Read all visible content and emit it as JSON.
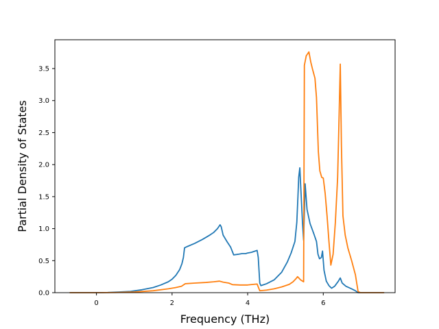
{
  "chart_data": {
    "type": "line",
    "title": "",
    "xlabel": "Frequency (THz)",
    "ylabel": "Partial Density of States",
    "xlim": [
      -1.1,
      7.9
    ],
    "ylim": [
      0.0,
      3.95
    ],
    "grid": false,
    "legend": "none",
    "x_ticks": [
      {
        "value": 0,
        "label": "0"
      },
      {
        "value": 2,
        "label": "2"
      },
      {
        "value": 4,
        "label": "4"
      },
      {
        "value": 6,
        "label": "6"
      }
    ],
    "y_ticks": [
      {
        "value": 0.0,
        "label": "0.0"
      },
      {
        "value": 0.5,
        "label": "0.5"
      },
      {
        "value": 1.0,
        "label": "1.0"
      },
      {
        "value": 1.5,
        "label": "1.5"
      },
      {
        "value": 2.0,
        "label": "2.0"
      },
      {
        "value": 2.5,
        "label": "2.5"
      },
      {
        "value": 3.0,
        "label": "3.0"
      },
      {
        "value": 3.5,
        "label": "3.5"
      }
    ],
    "series": [
      {
        "color": "#1f77b4",
        "points": [
          [
            -0.7,
            0.0
          ],
          [
            0.0,
            0.0
          ],
          [
            0.3,
            0.003
          ],
          [
            0.6,
            0.01
          ],
          [
            0.9,
            0.02
          ],
          [
            1.2,
            0.045
          ],
          [
            1.5,
            0.08
          ],
          [
            1.7,
            0.12
          ],
          [
            1.9,
            0.17
          ],
          [
            2.0,
            0.21
          ],
          [
            2.1,
            0.27
          ],
          [
            2.2,
            0.36
          ],
          [
            2.26,
            0.45
          ],
          [
            2.3,
            0.55
          ],
          [
            2.33,
            0.7
          ],
          [
            2.4,
            0.72
          ],
          [
            2.6,
            0.77
          ],
          [
            2.8,
            0.83
          ],
          [
            3.0,
            0.9
          ],
          [
            3.1,
            0.94
          ],
          [
            3.2,
            1.0
          ],
          [
            3.27,
            1.06
          ],
          [
            3.3,
            1.03
          ],
          [
            3.35,
            0.9
          ],
          [
            3.45,
            0.8
          ],
          [
            3.55,
            0.71
          ],
          [
            3.63,
            0.59
          ],
          [
            3.75,
            0.6
          ],
          [
            3.85,
            0.61
          ],
          [
            3.95,
            0.61
          ],
          [
            4.0,
            0.62
          ],
          [
            4.1,
            0.63
          ],
          [
            4.2,
            0.65
          ],
          [
            4.25,
            0.66
          ],
          [
            4.28,
            0.55
          ],
          [
            4.32,
            0.15
          ],
          [
            4.35,
            0.11
          ],
          [
            4.5,
            0.14
          ],
          [
            4.7,
            0.2
          ],
          [
            4.9,
            0.32
          ],
          [
            5.05,
            0.48
          ],
          [
            5.15,
            0.62
          ],
          [
            5.25,
            0.8
          ],
          [
            5.3,
            1.1
          ],
          [
            5.33,
            1.5
          ],
          [
            5.35,
            1.8
          ],
          [
            5.38,
            1.95
          ],
          [
            5.4,
            1.7
          ],
          [
            5.45,
            1.1
          ],
          [
            5.48,
            0.82
          ],
          [
            5.52,
            1.7
          ],
          [
            5.57,
            1.3
          ],
          [
            5.65,
            1.08
          ],
          [
            5.75,
            0.92
          ],
          [
            5.82,
            0.8
          ],
          [
            5.86,
            0.6
          ],
          [
            5.9,
            0.53
          ],
          [
            5.95,
            0.55
          ],
          [
            5.98,
            0.65
          ],
          [
            6.02,
            0.35
          ],
          [
            6.08,
            0.18
          ],
          [
            6.15,
            0.11
          ],
          [
            6.22,
            0.07
          ],
          [
            6.3,
            0.1
          ],
          [
            6.4,
            0.18
          ],
          [
            6.45,
            0.23
          ],
          [
            6.5,
            0.15
          ],
          [
            6.6,
            0.1
          ],
          [
            6.75,
            0.06
          ],
          [
            6.85,
            0.03
          ],
          [
            6.92,
            0.0
          ],
          [
            7.6,
            0.0
          ]
        ]
      },
      {
        "color": "#ff7f0e",
        "points": [
          [
            -0.7,
            0.0
          ],
          [
            0.0,
            0.0
          ],
          [
            0.5,
            0.003
          ],
          [
            1.0,
            0.01
          ],
          [
            1.5,
            0.03
          ],
          [
            1.9,
            0.06
          ],
          [
            2.1,
            0.08
          ],
          [
            2.25,
            0.1
          ],
          [
            2.35,
            0.14
          ],
          [
            2.6,
            0.15
          ],
          [
            2.9,
            0.16
          ],
          [
            3.1,
            0.17
          ],
          [
            3.25,
            0.18
          ],
          [
            3.35,
            0.165
          ],
          [
            3.5,
            0.15
          ],
          [
            3.6,
            0.125
          ],
          [
            3.8,
            0.12
          ],
          [
            4.0,
            0.12
          ],
          [
            4.15,
            0.13
          ],
          [
            4.25,
            0.135
          ],
          [
            4.32,
            0.03
          ],
          [
            4.5,
            0.04
          ],
          [
            4.7,
            0.06
          ],
          [
            4.9,
            0.09
          ],
          [
            5.1,
            0.13
          ],
          [
            5.2,
            0.17
          ],
          [
            5.28,
            0.22
          ],
          [
            5.32,
            0.25
          ],
          [
            5.4,
            0.2
          ],
          [
            5.48,
            0.17
          ],
          [
            5.5,
            3.55
          ],
          [
            5.55,
            3.7
          ],
          [
            5.62,
            3.76
          ],
          [
            5.67,
            3.6
          ],
          [
            5.72,
            3.48
          ],
          [
            5.78,
            3.35
          ],
          [
            5.82,
            3.05
          ],
          [
            5.87,
            2.2
          ],
          [
            5.91,
            1.9
          ],
          [
            5.96,
            1.8
          ],
          [
            6.0,
            1.79
          ],
          [
            6.05,
            1.55
          ],
          [
            6.1,
            1.2
          ],
          [
            6.15,
            0.8
          ],
          [
            6.2,
            0.43
          ],
          [
            6.26,
            0.6
          ],
          [
            6.32,
            1.1
          ],
          [
            6.38,
            1.8
          ],
          [
            6.42,
            2.8
          ],
          [
            6.45,
            3.57
          ],
          [
            6.48,
            2.3
          ],
          [
            6.52,
            1.2
          ],
          [
            6.58,
            0.9
          ],
          [
            6.65,
            0.7
          ],
          [
            6.75,
            0.5
          ],
          [
            6.85,
            0.28
          ],
          [
            6.92,
            0.02
          ],
          [
            6.98,
            0.0
          ],
          [
            7.6,
            0.0
          ]
        ]
      }
    ]
  }
}
